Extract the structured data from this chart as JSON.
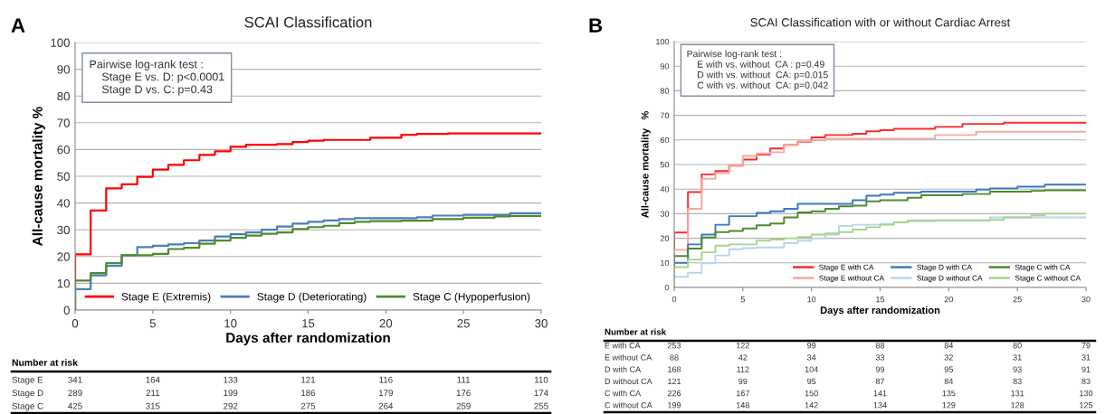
{
  "chart_data": [
    {
      "type": "step",
      "title": "SCAI Classification",
      "xlabel": "Days after randomization",
      "ylabel": "All-cause mortality %",
      "xlim": [
        0,
        30
      ],
      "ylim": [
        0,
        100
      ],
      "xticks": [
        0,
        5,
        10,
        15,
        20,
        25,
        30
      ],
      "yticks": [
        0,
        10,
        20,
        30,
        40,
        50,
        60,
        70,
        80,
        90,
        100
      ],
      "grid": "y",
      "legend": "bottom",
      "series": [
        {
          "name": "Stage E (Extremis)",
          "color": "#ff0000",
          "x": [
            0,
            0,
            1,
            2,
            3,
            4,
            5,
            6,
            7,
            8,
            9,
            10,
            11,
            13,
            14,
            15,
            16,
            19,
            21,
            22,
            24,
            30
          ],
          "values": [
            0,
            20.8,
            37.2,
            45.5,
            47,
            49.8,
            52.5,
            54.3,
            56,
            58,
            59.3,
            61,
            61.8,
            62,
            62.8,
            63.3,
            63.6,
            64.4,
            65.5,
            65.8,
            66,
            66
          ]
        },
        {
          "name": "Stage D (Deteriorating)",
          "color": "#4a7ebb",
          "x": [
            0,
            0,
            1,
            2,
            3,
            4,
            5,
            6,
            7,
            8,
            9,
            10,
            11,
            12,
            13,
            14,
            15,
            16,
            17,
            18,
            22,
            23,
            25,
            28,
            30
          ],
          "values": [
            0,
            7.8,
            13,
            16.5,
            20.5,
            23.5,
            24,
            24.5,
            25,
            26,
            27.5,
            28.3,
            29,
            30,
            31.2,
            32.3,
            33,
            33.5,
            34,
            34.3,
            34.7,
            35.3,
            35.6,
            36.2,
            36.2
          ]
        },
        {
          "name": "Stage C (Hypoperfusion)",
          "color": "#4e8a2e",
          "x": [
            0,
            0,
            1,
            2,
            3,
            5,
            6,
            7,
            8,
            9,
            10,
            11,
            12,
            13,
            14,
            15,
            16,
            17,
            18,
            19,
            21,
            23,
            25,
            27,
            28,
            30
          ],
          "values": [
            0,
            11,
            13.8,
            17.5,
            20.5,
            21,
            22.8,
            23.3,
            24.8,
            26,
            27,
            27.8,
            28.5,
            29,
            30.3,
            31,
            31.5,
            32.5,
            33,
            33.2,
            33.4,
            34,
            34.5,
            35,
            35.2,
            35.2
          ]
        }
      ],
      "annotations": [
        "A",
        "Pairwise log-rank test :\n    Stage E vs. D: p<0.0001\n    Stage D vs. C: p=0.43",
        "Number at risk",
        "Stage E 341 164 133 121 116 111 110",
        "Stage D 289 211 199 186 179 176 174",
        "Stage C 425 315 292 275 264 259 255"
      ]
    },
    {
      "type": "step",
      "title": "SCAI Classification with or without Cardiac Arrest",
      "xlabel": "Days after randomization",
      "ylabel": "All-cause mortality   %",
      "xlim": [
        0,
        30
      ],
      "ylim": [
        0,
        100
      ],
      "xticks": [
        0,
        5,
        10,
        15,
        20,
        25,
        30
      ],
      "yticks": [
        0,
        10,
        20,
        30,
        40,
        50,
        60,
        70,
        80,
        90,
        100
      ],
      "grid": "y",
      "legend": "bottom right",
      "series": [
        {
          "name": "Stage E with CA",
          "color": "#ff2a2a",
          "x": [
            0,
            0,
            1,
            2,
            3,
            4,
            5,
            6,
            7,
            8,
            9,
            10,
            11,
            13,
            14,
            15,
            16,
            19,
            21,
            24,
            30
          ],
          "values": [
            0,
            22.3,
            38.8,
            46,
            47.3,
            49.5,
            52,
            54,
            56.5,
            58,
            59.3,
            61,
            62,
            62.5,
            63.5,
            64,
            64.5,
            65.3,
            66.5,
            67,
            67
          ]
        },
        {
          "name": "Stage E without CA",
          "color": "#f8a8a0",
          "x": [
            0,
            0,
            1,
            2,
            3,
            4,
            5,
            6,
            7,
            8,
            9,
            10,
            11,
            19,
            22,
            30
          ],
          "values": [
            0,
            15.3,
            32,
            44.2,
            46.5,
            49.5,
            53.5,
            54.5,
            55,
            58,
            59.5,
            59.8,
            60.5,
            62,
            63.3,
            63.3
          ]
        },
        {
          "name": "Stage D with CA",
          "color": "#3b78c0",
          "x": [
            0,
            0,
            1,
            2,
            3,
            4,
            6,
            7,
            8,
            9,
            13,
            14,
            15,
            16,
            18,
            22,
            23,
            25,
            27,
            30
          ],
          "values": [
            0,
            10,
            17.5,
            21.5,
            25.5,
            29,
            30.3,
            31,
            32,
            34,
            35.5,
            37.3,
            37.8,
            38.5,
            39,
            39.8,
            40.3,
            41,
            41.8,
            41.8
          ]
        },
        {
          "name": "Stage D without CA",
          "color": "#b8d4f0",
          "x": [
            0,
            0,
            1,
            2,
            3,
            4,
            5,
            6,
            8,
            9,
            10,
            11,
            12,
            13,
            15,
            16,
            17,
            23,
            30
          ],
          "values": [
            0,
            4.3,
            6,
            9.8,
            13,
            15.5,
            16,
            16.3,
            18,
            19,
            20,
            21.5,
            25,
            25.5,
            25.8,
            26.5,
            27.3,
            28.5,
            28.5
          ]
        },
        {
          "name": "Stage C with CA",
          "color": "#4e8a2e",
          "x": [
            0,
            0,
            1,
            2,
            3,
            4,
            5,
            6,
            7,
            8,
            9,
            10,
            11,
            12,
            13,
            14,
            15,
            17,
            18,
            21,
            23,
            26,
            27,
            30
          ],
          "values": [
            0,
            12.8,
            15.8,
            20.3,
            22.5,
            23,
            24,
            25.3,
            26,
            28.5,
            30.5,
            31,
            32,
            33,
            33.3,
            35,
            35.5,
            36.5,
            37.5,
            38,
            39,
            39.3,
            39.5,
            39.5
          ]
        },
        {
          "name": "Stage C without CA",
          "color": "#a8d48a",
          "x": [
            0,
            0,
            1,
            2,
            3,
            4,
            6,
            7,
            8,
            9,
            10,
            11,
            12,
            13,
            14,
            15,
            16,
            17,
            19,
            23,
            24,
            26,
            27,
            30
          ],
          "values": [
            0,
            8.3,
            11.3,
            14.3,
            17,
            17.5,
            19,
            19.5,
            20,
            20.5,
            21.5,
            22,
            22.5,
            23.5,
            24.5,
            25.5,
            26.5,
            27,
            27.3,
            27.5,
            28.5,
            29.3,
            30,
            30
          ]
        }
      ],
      "annotations": [
        "B",
        "Pairwise log-rank test :\n    E with vs. without  CA : p=0.49\n    D with vs. without  CA: p=0.015\n    C with vs. without  CA: p=0.042",
        "Number at risk",
        "E with CA 253 122 99 88 84 80 79",
        "E without CA 88 42 34 33 32 31 31",
        "D with CA 168 112 104 99 95 93 91",
        "D without CA 121 99 95 87 84 83 83",
        "C with CA 226 167 150 141 135 131 130",
        "C without CA 199 148 142 134 129 128 125"
      ]
    }
  ]
}
